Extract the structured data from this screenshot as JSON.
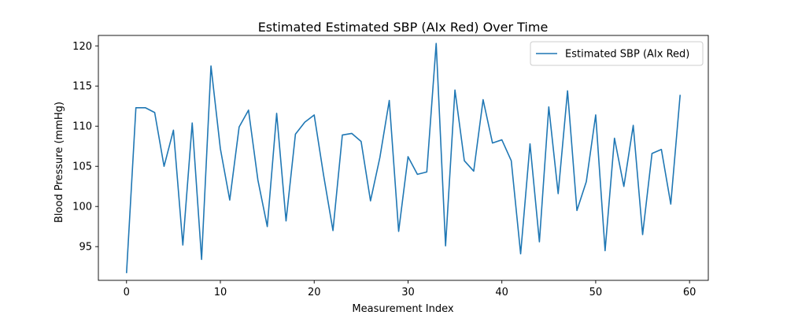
{
  "chart_data": {
    "type": "line",
    "title": "Estimated Estimated SBP (AIx Red) Over Time",
    "xlabel": "Measurement Index",
    "ylabel": "Blood Pressure (mmHg)",
    "xlim": [
      -3,
      62
    ],
    "ylim": [
      90.8,
      121.3
    ],
    "xticks": [
      0,
      10,
      20,
      30,
      40,
      50,
      60
    ],
    "yticks": [
      95,
      100,
      105,
      110,
      115,
      120
    ],
    "grid": false,
    "legend_position": "top-right",
    "series": [
      {
        "name": "Estimated SBP (AIx Red)",
        "color": "#1f77b4",
        "x": [
          0,
          1,
          2,
          3,
          4,
          5,
          6,
          7,
          8,
          9,
          10,
          11,
          12,
          13,
          14,
          15,
          16,
          17,
          18,
          19,
          20,
          21,
          22,
          23,
          24,
          25,
          26,
          27,
          28,
          29,
          30,
          31,
          32,
          33,
          34,
          35,
          36,
          37,
          38,
          39,
          40,
          41,
          42,
          43,
          44,
          45,
          46,
          47,
          48,
          49,
          50,
          51,
          52,
          53,
          54,
          55,
          56,
          57,
          58,
          59
        ],
        "values": [
          91.7,
          112.3,
          112.3,
          111.7,
          105.0,
          109.5,
          95.2,
          110.4,
          93.4,
          117.5,
          107.2,
          100.8,
          109.9,
          112.0,
          103.3,
          97.5,
          111.6,
          98.2,
          109.0,
          110.5,
          111.4,
          103.9,
          97.0,
          108.9,
          109.1,
          108.1,
          100.7,
          106.1,
          113.2,
          96.9,
          106.2,
          104.0,
          104.3,
          120.3,
          95.1,
          114.5,
          105.7,
          104.4,
          113.3,
          107.9,
          108.3,
          105.7,
          94.1,
          107.8,
          95.6,
          112.4,
          101.6,
          114.4,
          99.5,
          103.1,
          111.4,
          94.5,
          108.5,
          102.5,
          110.1,
          96.5,
          106.6,
          107.1,
          100.3,
          113.9
        ]
      }
    ]
  }
}
